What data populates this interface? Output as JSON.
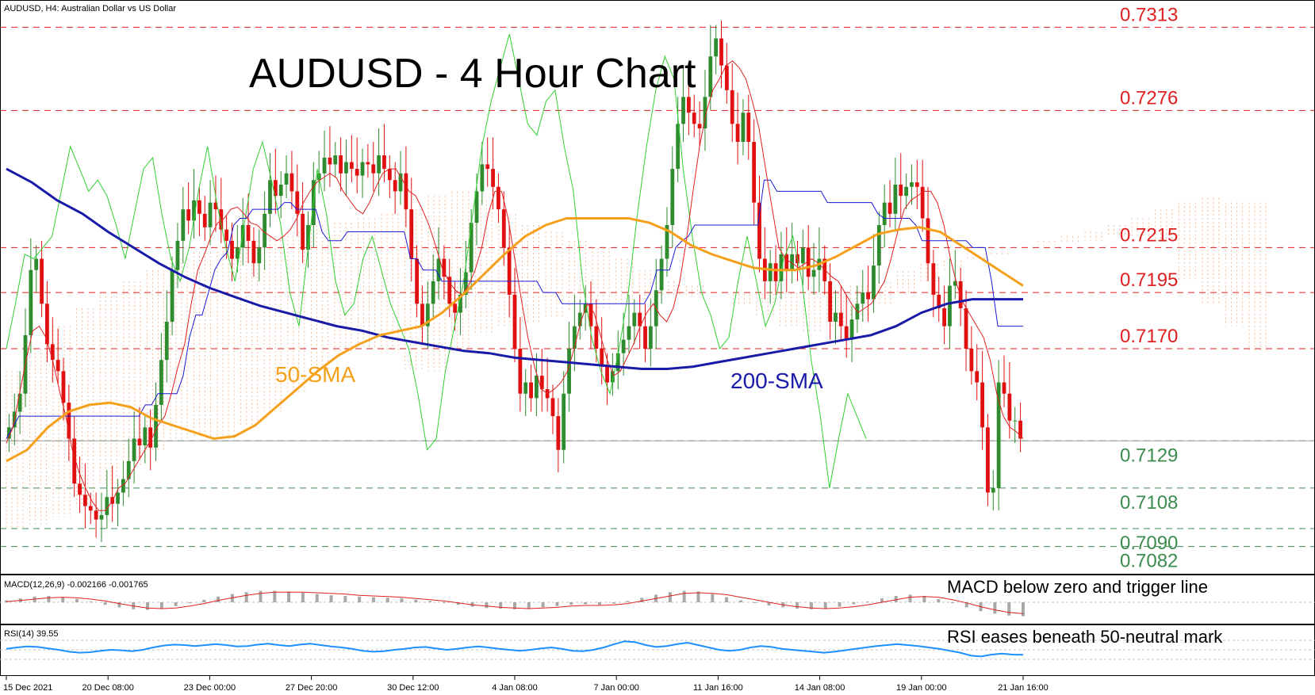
{
  "symbol_label": "AUDUSD, H4:  Australian Dollar vs US Dollar",
  "macd_label": "MACD(12,26,9) -0.002166 -0.001765",
  "rsi_label": "RSI(14) 39.55",
  "chart_data": [
    {
      "type": "candlestick",
      "title": "AUDUSD - 4 Hour Chart",
      "ylim": [
        0.7072,
        0.7323
      ],
      "x_tick_labels": [
        "15 Dec 2021",
        "20 Dec 08:00",
        "23 Dec 00:00",
        "27 Dec 20:00",
        "30 Dec 12:00",
        "4 Jan 08:00",
        "7 Jan 00:00",
        "11 Jan 16:00",
        "14 Jan 08:00",
        "19 Jan 00:00",
        "21 Jan 16:00"
      ],
      "resistance_levels": [
        "0.7313",
        "0.7276",
        "0.7215",
        "0.7195",
        "0.7170"
      ],
      "support_levels": [
        "0.7129",
        "0.7108",
        "0.7090",
        "0.7082"
      ],
      "current_price": 0.7129,
      "annotations": [
        "50-SMA",
        "200-SMA"
      ],
      "colors": {
        "up": "#2e8b2e",
        "down": "#e01010",
        "sma50": "#f5a01a",
        "sma200": "#1a1aa8",
        "kijun": "#1a1ad8",
        "tenkan": "#e02020",
        "chikou": "#30d030",
        "cloud": "#f0a070",
        "resistance": "#e02020",
        "support": "#3c8c50"
      },
      "close": [
        0.7135,
        0.7142,
        0.715,
        0.7176,
        0.7205,
        0.721,
        0.719,
        0.7172,
        0.7165,
        0.716,
        0.7146,
        0.713,
        0.711,
        0.7105,
        0.71,
        0.7098,
        0.7094,
        0.7096,
        0.7104,
        0.7101,
        0.7106,
        0.7112,
        0.712,
        0.713,
        0.7127,
        0.7135,
        0.7126,
        0.7145,
        0.7165,
        0.7182,
        0.7205,
        0.7218,
        0.7232,
        0.7227,
        0.7236,
        0.723,
        0.7224,
        0.7235,
        0.7232,
        0.7223,
        0.7218,
        0.721,
        0.7215,
        0.7225,
        0.7218,
        0.7208,
        0.7215,
        0.723,
        0.7245,
        0.7238,
        0.7243,
        0.7248,
        0.724,
        0.723,
        0.7214,
        0.7225,
        0.7245,
        0.7248,
        0.7255,
        0.7252,
        0.7256,
        0.7248,
        0.7253,
        0.725,
        0.7247,
        0.7253,
        0.7252,
        0.7248,
        0.7256,
        0.725,
        0.7245,
        0.724,
        0.7248,
        0.7232,
        0.721,
        0.719,
        0.718,
        0.719,
        0.72,
        0.721,
        0.7202,
        0.719,
        0.7186,
        0.7194,
        0.7204,
        0.7226,
        0.724,
        0.7252,
        0.725,
        0.7242,
        0.7232,
        0.7215,
        0.7194,
        0.717,
        0.715,
        0.7155,
        0.7148,
        0.7158,
        0.7152,
        0.7148,
        0.714,
        0.7125,
        0.715,
        0.717,
        0.718,
        0.7186,
        0.719,
        0.718,
        0.717,
        0.7162,
        0.7155,
        0.716,
        0.7168,
        0.7174,
        0.718,
        0.7186,
        0.718,
        0.717,
        0.718,
        0.7196,
        0.721,
        0.7225,
        0.725,
        0.727,
        0.7282,
        0.7275,
        0.727,
        0.7268,
        0.7282,
        0.73,
        0.7308,
        0.7296,
        0.7285,
        0.727,
        0.7262,
        0.7275,
        0.7262,
        0.7235,
        0.721,
        0.72,
        0.7208,
        0.72,
        0.7212,
        0.7205,
        0.7212,
        0.7208,
        0.7215,
        0.7202,
        0.7205,
        0.721,
        0.72,
        0.7182,
        0.7186,
        0.718,
        0.7174,
        0.7183,
        0.719,
        0.7195,
        0.7192,
        0.7207,
        0.7225,
        0.7235,
        0.723,
        0.7243,
        0.7238,
        0.7242,
        0.7244,
        0.7242,
        0.7228,
        0.7208,
        0.7194,
        0.7188,
        0.718,
        0.7198,
        0.72,
        0.7188,
        0.717,
        0.716,
        0.7155,
        0.7135,
        0.7106,
        0.7108,
        0.7155,
        0.715,
        0.7138,
        0.7138,
        0.713
      ],
      "sma50": [
        0.712,
        0.7125,
        0.7135,
        0.7142,
        0.7145,
        0.7146,
        0.7144,
        0.7139,
        0.7136,
        0.7133,
        0.713,
        0.7131,
        0.7136,
        0.7144,
        0.7152,
        0.716,
        0.7167,
        0.7172,
        0.7176,
        0.7178,
        0.718,
        0.7186,
        0.7194,
        0.7203,
        0.7212,
        0.722,
        0.7225,
        0.7228,
        0.7228,
        0.7228,
        0.7228,
        0.7226,
        0.7222,
        0.7216,
        0.7212,
        0.7209,
        0.7206,
        0.7205,
        0.7205,
        0.7207,
        0.7211,
        0.7216,
        0.7221,
        0.7223,
        0.7224,
        0.7222,
        0.7216,
        0.721,
        0.7204,
        0.7198
      ],
      "sma200": [
        0.725,
        0.7244,
        0.7236,
        0.723,
        0.7222,
        0.7215,
        0.7208,
        0.7202,
        0.7197,
        0.7193,
        0.7189,
        0.7186,
        0.7183,
        0.718,
        0.7178,
        0.7175,
        0.7173,
        0.7171,
        0.7169,
        0.7168,
        0.7166,
        0.7165,
        0.7164,
        0.7163,
        0.7162,
        0.7161,
        0.7161,
        0.7162,
        0.7164,
        0.7166,
        0.7168,
        0.717,
        0.7172,
        0.7174,
        0.7176,
        0.718,
        0.7186,
        0.719,
        0.7192,
        0.7192,
        0.7192
      ],
      "kijun": [
        0.713,
        0.7135,
        0.714,
        0.714,
        0.714,
        0.714,
        0.714,
        0.714,
        0.714,
        0.714,
        0.714,
        0.714,
        0.714,
        0.714,
        0.714,
        0.714,
        0.714,
        0.714,
        0.714,
        0.714,
        0.714,
        0.714,
        0.7145,
        0.7145,
        0.715,
        0.715,
        0.715,
        0.715,
        0.7158,
        0.7175,
        0.7185,
        0.7185,
        0.7195,
        0.7205,
        0.721,
        0.7213,
        0.7225,
        0.7228,
        0.7228,
        0.7232,
        0.7232,
        0.7232,
        0.7232,
        0.7232,
        0.7235,
        0.7235,
        0.7232,
        0.7232,
        0.7232,
        0.7232,
        0.7222,
        0.7218,
        0.7218,
        0.7218,
        0.7222,
        0.7222,
        0.7222,
        0.7222,
        0.7222,
        0.7222,
        0.7222,
        0.7222,
        0.7222,
        0.7222,
        0.721,
        0.721,
        0.7205,
        0.7205,
        0.7205,
        0.72,
        0.72,
        0.72,
        0.72,
        0.72,
        0.72,
        0.72,
        0.72,
        0.72,
        0.72,
        0.72,
        0.72,
        0.72,
        0.72,
        0.72,
        0.72,
        0.7195,
        0.7195,
        0.7195,
        0.719,
        0.719,
        0.719,
        0.719,
        0.719,
        0.719,
        0.719,
        0.719,
        0.719,
        0.719,
        0.719,
        0.719,
        0.719,
        0.719,
        0.7195,
        0.7205,
        0.7205,
        0.7205,
        0.7215,
        0.7218,
        0.722,
        0.7225,
        0.7225,
        0.7225,
        0.7225,
        0.7225,
        0.7225,
        0.7225,
        0.7225,
        0.7225,
        0.7225,
        0.7225,
        0.7245,
        0.7245,
        0.724,
        0.724,
        0.724,
        0.724,
        0.724,
        0.724,
        0.724,
        0.724,
        0.7235,
        0.7235,
        0.7235,
        0.7235,
        0.7235,
        0.7235,
        0.7235,
        0.7235,
        0.723,
        0.7228,
        0.7228,
        0.7228,
        0.7228,
        0.7228,
        0.7225,
        0.7218,
        0.7218,
        0.7218,
        0.7218,
        0.7218,
        0.7218,
        0.7218,
        0.7218,
        0.7215,
        0.7215,
        0.7215,
        0.72,
        0.718,
        0.718,
        0.718,
        0.718,
        0.718
      ],
      "tenkan": [
        0.7128,
        0.7135,
        0.715,
        0.7165,
        0.7178,
        0.718,
        0.7175,
        0.7165,
        0.7152,
        0.714,
        0.7125,
        0.7115,
        0.7108,
        0.7102,
        0.7098,
        0.7098,
        0.7102,
        0.7108,
        0.711,
        0.7115,
        0.712,
        0.7125,
        0.713,
        0.7136,
        0.714,
        0.715,
        0.7162,
        0.7172,
        0.719,
        0.7205,
        0.7212,
        0.722,
        0.7226,
        0.7228,
        0.7232,
        0.7233,
        0.723,
        0.7226,
        0.7225,
        0.7222,
        0.722,
        0.7218,
        0.722,
        0.7223,
        0.7228,
        0.7235,
        0.724,
        0.7244,
        0.7246,
        0.7248,
        0.7246,
        0.724,
        0.7236,
        0.7232,
        0.723,
        0.7235,
        0.7242,
        0.7248,
        0.725,
        0.725,
        0.7245,
        0.724,
        0.7238,
        0.7232,
        0.7225,
        0.7216,
        0.7206,
        0.72,
        0.7196,
        0.7194,
        0.7198,
        0.7205,
        0.7215,
        0.723,
        0.724,
        0.724,
        0.7228,
        0.721,
        0.7192,
        0.7175,
        0.7162,
        0.7152,
        0.715,
        0.7152,
        0.7155,
        0.716,
        0.717,
        0.7182,
        0.719,
        0.7186,
        0.7176,
        0.7165,
        0.7158,
        0.716,
        0.7166,
        0.7172,
        0.718,
        0.7186,
        0.719,
        0.7185,
        0.7182,
        0.7188,
        0.72,
        0.7218,
        0.724,
        0.726,
        0.7275,
        0.7285,
        0.729,
        0.7296,
        0.7298,
        0.7295,
        0.729,
        0.728,
        0.7268,
        0.725,
        0.7232,
        0.7215,
        0.721,
        0.7208,
        0.7206,
        0.7208,
        0.721,
        0.7208,
        0.7205,
        0.7202,
        0.72,
        0.7195,
        0.719,
        0.7186,
        0.7188,
        0.719,
        0.7195,
        0.72,
        0.721,
        0.7222,
        0.7232,
        0.7236,
        0.7238,
        0.724,
        0.724,
        0.7235,
        0.7225,
        0.721,
        0.7198,
        0.719,
        0.7185,
        0.718,
        0.7175,
        0.7165,
        0.715,
        0.714,
        0.7135,
        0.7133,
        0.713
      ],
      "chikou": [
        0.717,
        0.719,
        0.7212,
        0.721,
        0.7215,
        0.722,
        0.724,
        0.726,
        0.725,
        0.724,
        0.7245,
        0.7238,
        0.7225,
        0.721,
        0.723,
        0.725,
        0.7255,
        0.723,
        0.721,
        0.72,
        0.7215,
        0.724,
        0.726,
        0.7235,
        0.7215,
        0.72,
        0.7225,
        0.725,
        0.7262,
        0.7245,
        0.7225,
        0.7195,
        0.718,
        0.7215,
        0.725,
        0.723,
        0.72,
        0.7185,
        0.719,
        0.721,
        0.722,
        0.7205,
        0.719,
        0.718,
        0.717,
        0.715,
        0.7125,
        0.713,
        0.716,
        0.718,
        0.72,
        0.723,
        0.726,
        0.728,
        0.7295,
        0.731,
        0.729,
        0.727,
        0.7265,
        0.728,
        0.7285,
        0.726,
        0.724,
        0.72,
        0.7175,
        0.716,
        0.715,
        0.717,
        0.7195,
        0.723,
        0.726,
        0.7285,
        0.73,
        0.729,
        0.725,
        0.722,
        0.7195,
        0.7185,
        0.717,
        0.7175,
        0.72,
        0.722,
        0.72,
        0.718,
        0.719,
        0.721,
        0.722,
        0.72,
        0.7165,
        0.714,
        0.7108,
        0.713,
        0.715,
        0.714,
        0.713
      ],
      "cloud_a": [
        0.716,
        0.717,
        0.718,
        0.7188,
        0.7195,
        0.72,
        0.7205,
        0.721,
        0.7213,
        0.7215,
        0.7218,
        0.722,
        0.7222,
        0.7225,
        0.7226,
        0.7228,
        0.723,
        0.7232,
        0.7238,
        0.724,
        0.7236,
        0.723,
        0.7225,
        0.7222,
        0.7218,
        0.7215,
        0.721,
        0.7205,
        0.72,
        0.7198,
        0.7195,
        0.719,
        0.7185,
        0.718,
        0.7178,
        0.718,
        0.7185,
        0.719,
        0.7195,
        0.72,
        0.7205,
        0.721,
        0.7212,
        0.7215,
        0.7218,
        0.722,
        0.7222,
        0.7225,
        0.7228,
        0.7232,
        0.7235,
        0.7237,
        0.7235,
        0.7235
      ],
      "cloud_b": [
        0.709,
        0.7092,
        0.7095,
        0.71,
        0.711,
        0.7118,
        0.7125,
        0.713,
        0.713,
        0.713,
        0.7135,
        0.7142,
        0.715,
        0.716,
        0.7168,
        0.717,
        0.7168,
        0.716,
        0.716,
        0.7168,
        0.7176,
        0.718,
        0.7182,
        0.7184,
        0.7186,
        0.7188,
        0.719,
        0.7192,
        0.7193,
        0.7194,
        0.7195,
        0.7195,
        0.7195,
        0.7195,
        0.7195,
        0.7196,
        0.7198,
        0.72,
        0.7205,
        0.7208,
        0.721,
        0.7212,
        0.7214,
        0.7215,
        0.7216,
        0.7217,
        0.7218,
        0.722,
        0.722,
        0.7218,
        0.72,
        0.719,
        0.718,
        0.7168
      ]
    },
    {
      "type": "bar",
      "title": "MACD below zero and trigger line",
      "series": [
        {
          "name": "MACD",
          "values": [
            0.0003,
            0.0006,
            0.0009,
            0.001,
            0.0008,
            0.0005,
            0.0001,
            -0.0004,
            -0.0008,
            -0.0011,
            -0.0012,
            -0.001,
            -0.0006,
            -0.0001,
            0.0004,
            0.0009,
            0.0013,
            0.0016,
            0.0018,
            0.0018,
            0.0017,
            0.0015,
            0.0013,
            0.0011,
            0.001,
            0.0009,
            0.0008,
            0.0007,
            0.0006,
            0.0004,
            0.0002,
            -0.0001,
            -0.0004,
            -0.0007,
            -0.0009,
            -0.001,
            -0.0011,
            -0.001,
            -0.0008,
            -0.0006,
            -0.0004,
            -0.0003,
            -0.0004,
            -0.0002,
            0.0002,
            0.0007,
            0.0012,
            0.0016,
            0.0018,
            0.0017,
            0.0013,
            0.0008,
            0.0003,
            -0.0001,
            -0.0005,
            -0.0008,
            -0.001,
            -0.0011,
            -0.001,
            -0.0007,
            -0.0003,
            0.0001,
            0.0006,
            0.001,
            0.0012,
            0.001,
            0.0005,
            -0.0001,
            -0.0008,
            -0.0014,
            -0.0018,
            -0.0021,
            -0.0022
          ]
        },
        {
          "name": "Signal",
          "values": [
            0.0001,
            0.0003,
            0.0005,
            0.0007,
            0.0008,
            0.0007,
            0.0005,
            0.0002,
            -0.0002,
            -0.0006,
            -0.0009,
            -0.001,
            -0.0009,
            -0.0006,
            -0.0002,
            0.0003,
            0.0007,
            0.0011,
            0.0014,
            0.0016,
            0.0016,
            0.0016,
            0.0015,
            0.0014,
            0.0013,
            0.0011,
            0.001,
            0.0009,
            0.0008,
            0.0006,
            0.0004,
            0.0002,
            -0.0001,
            -0.0004,
            -0.0006,
            -0.0008,
            -0.0009,
            -0.001,
            -0.0009,
            -0.0008,
            -0.0006,
            -0.0005,
            -0.0005,
            -0.0004,
            -0.0002,
            0.0002,
            0.0006,
            0.001,
            0.0014,
            0.0015,
            0.0014,
            0.0012,
            0.0008,
            0.0004,
            0.0,
            -0.0004,
            -0.0007,
            -0.0009,
            -0.001,
            -0.0009,
            -0.0007,
            -0.0004,
            0.0,
            0.0004,
            0.0008,
            0.0009,
            0.0008,
            0.0004,
            -0.0001,
            -0.0007,
            -0.0012,
            -0.0016,
            -0.0018
          ]
        }
      ]
    },
    {
      "type": "line",
      "title": "RSI eases beneath 50-neutral mark",
      "series": [
        {
          "name": "RSI(14)",
          "values": [
            52,
            55,
            57,
            56,
            53,
            50,
            46,
            44,
            45,
            48,
            50,
            49,
            47,
            50,
            55,
            59,
            61,
            60,
            58,
            60,
            62,
            60,
            57,
            58,
            61,
            63,
            60,
            58,
            61,
            63,
            60,
            57,
            55,
            52,
            48,
            46,
            47,
            50,
            52,
            55,
            56,
            53,
            50,
            52,
            55,
            57,
            55,
            52,
            50,
            48,
            50,
            53,
            55,
            52,
            48,
            47,
            50,
            55,
            62,
            68,
            66,
            60,
            56,
            58,
            62,
            65,
            60,
            55,
            50,
            48,
            50,
            55,
            58,
            56,
            52,
            50,
            48,
            46,
            44,
            46,
            49,
            52,
            55,
            58,
            60,
            62,
            60,
            58,
            55,
            52,
            48,
            44,
            38,
            36,
            40,
            42,
            40,
            39.55
          ]
        }
      ]
    }
  ]
}
